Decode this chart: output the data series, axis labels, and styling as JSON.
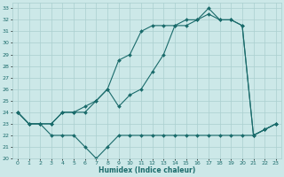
{
  "xlabel": "Humidex (Indice chaleur)",
  "xlim": [
    -0.5,
    23.5
  ],
  "ylim": [
    20,
    33.5
  ],
  "yticks": [
    20,
    21,
    22,
    23,
    24,
    25,
    26,
    27,
    28,
    29,
    30,
    31,
    32,
    33
  ],
  "xticks": [
    0,
    1,
    2,
    3,
    4,
    5,
    6,
    7,
    8,
    9,
    10,
    11,
    12,
    13,
    14,
    15,
    16,
    17,
    18,
    19,
    20,
    21,
    22,
    23
  ],
  "bg_color": "#cce8e8",
  "grid_color": "#aacfcf",
  "line_color": "#1a6b6b",
  "line1_x": [
    0,
    1,
    2,
    3,
    4,
    5,
    6,
    7,
    8,
    9,
    10,
    11,
    12,
    13,
    14,
    15,
    16,
    17,
    18,
    19,
    20,
    21,
    22,
    23
  ],
  "line1_y": [
    24,
    23,
    23,
    22,
    22,
    22,
    21,
    20,
    21,
    22,
    22,
    22,
    22,
    22,
    22,
    22,
    22,
    22,
    22,
    22,
    22,
    22,
    22.5,
    23
  ],
  "line2_x": [
    0,
    1,
    2,
    3,
    4,
    5,
    6,
    7,
    8,
    9,
    10,
    11,
    12,
    13,
    14,
    15,
    16,
    17,
    18,
    19,
    20,
    21,
    22,
    23
  ],
  "line2_y": [
    24,
    23,
    23,
    23,
    24,
    24,
    24,
    25,
    26,
    24.5,
    25.5,
    26,
    27.5,
    29,
    31.5,
    31.5,
    32,
    33,
    32,
    32,
    31.5,
    22,
    22.5,
    23
  ],
  "line3_x": [
    0,
    1,
    2,
    3,
    4,
    5,
    6,
    7,
    8,
    9,
    10,
    11,
    12,
    13,
    14,
    15,
    16,
    17,
    18,
    19,
    20,
    21,
    22,
    23
  ],
  "line3_y": [
    24,
    23,
    23,
    23,
    24,
    24,
    24.5,
    25,
    26,
    28.5,
    29,
    31,
    31.5,
    31.5,
    31.5,
    32,
    32,
    32.5,
    32,
    32,
    31.5,
    22,
    22.5,
    23
  ],
  "markersize": 2.0,
  "linewidth": 0.8
}
